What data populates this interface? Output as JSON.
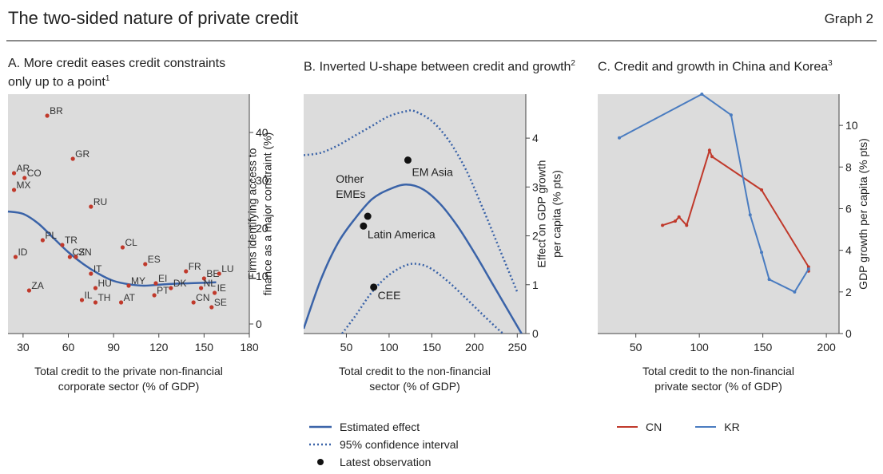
{
  "header": {
    "title": "The two-sided nature of private credit",
    "graph_label": "Graph 2"
  },
  "colors": {
    "panel_bg": "#dcdcdc",
    "estimate": "#3a63a8",
    "ci": "#3a63a8",
    "point_a": "#c0392b",
    "cn": "#c0392b",
    "kr": "#4a7cc0",
    "obs": "#111111"
  },
  "chart_data": [
    {
      "type": "scatter",
      "title": "A. More credit eases credit constraints only up to a point",
      "title_sup": "1",
      "xlabel_lines": [
        "Total credit to the private non-financial",
        "corporate sector (% of GDP)"
      ],
      "ylabel_lines": [
        "Firms identifying access to",
        "finance as a major constraint (%)"
      ],
      "y_axis_side": "right",
      "xlim": [
        20,
        180
      ],
      "ylim": [
        -2,
        48
      ],
      "x_ticks": [
        30,
        60,
        90,
        120,
        150,
        180
      ],
      "y_ticks": [
        0,
        10,
        20,
        30,
        40
      ],
      "points": [
        {
          "label": "BR",
          "x": 46,
          "y": 43.5
        },
        {
          "label": "GR",
          "x": 63,
          "y": 34.5
        },
        {
          "label": "AR",
          "x": 24,
          "y": 31.5
        },
        {
          "label": "CO",
          "x": 31,
          "y": 30.5
        },
        {
          "label": "MX",
          "x": 24,
          "y": 28
        },
        {
          "label": "RU",
          "x": 75,
          "y": 24.5
        },
        {
          "label": "PL",
          "x": 43,
          "y": 17.5
        },
        {
          "label": "TR",
          "x": 56,
          "y": 16.5
        },
        {
          "label": "ID",
          "x": 25,
          "y": 14
        },
        {
          "label": "CZ",
          "x": 61,
          "y": 14
        },
        {
          "label": "SN",
          "x": 65,
          "y": 14
        },
        {
          "label": "CL",
          "x": 96,
          "y": 16
        },
        {
          "label": "ES",
          "x": 111,
          "y": 12.5
        },
        {
          "label": "FR",
          "x": 138,
          "y": 11
        },
        {
          "label": "BE",
          "x": 150,
          "y": 9.5
        },
        {
          "label": "LU",
          "x": 160,
          "y": 10.5
        },
        {
          "label": "IT",
          "x": 75,
          "y": 10.5
        },
        {
          "label": "HU",
          "x": 78,
          "y": 7.5
        },
        {
          "label": "MY",
          "x": 100,
          "y": 8
        },
        {
          "label": "EI",
          "x": 118,
          "y": 8.5
        },
        {
          "label": "DK",
          "x": 128,
          "y": 7.5
        },
        {
          "label": "ZA",
          "x": 34,
          "y": 7
        },
        {
          "label": "IL",
          "x": 69,
          "y": 5
        },
        {
          "label": "TH",
          "x": 78,
          "y": 4.5
        },
        {
          "label": "AT",
          "x": 95,
          "y": 4.5
        },
        {
          "label": "PT",
          "x": 117,
          "y": 6
        },
        {
          "label": "NL",
          "x": 148,
          "y": 7.5
        },
        {
          "label": "IE",
          "x": 157,
          "y": 6.5
        },
        {
          "label": "CN",
          "x": 143,
          "y": 4.5
        },
        {
          "label": "SE",
          "x": 155,
          "y": 3.5
        }
      ],
      "fit_curve": [
        [
          20,
          23.5
        ],
        [
          30,
          23
        ],
        [
          40,
          21
        ],
        [
          50,
          18
        ],
        [
          60,
          15
        ],
        [
          70,
          12.5
        ],
        [
          80,
          10.5
        ],
        [
          90,
          9
        ],
        [
          100,
          8.3
        ],
        [
          110,
          8
        ],
        [
          120,
          8.2
        ],
        [
          130,
          8.4
        ],
        [
          140,
          8.5
        ],
        [
          150,
          8.6
        ],
        [
          158,
          8.7
        ]
      ]
    },
    {
      "type": "line",
      "title": "B. Inverted U-shape between credit and growth",
      "title_sup": "2",
      "xlabel_lines": [
        "Total credit to the non-financial",
        "sector (% of GDP)"
      ],
      "ylabel_lines": [
        "Effect on GDP growth",
        "per capita (% pts)"
      ],
      "y_axis_side": "right",
      "xlim": [
        0,
        260
      ],
      "ylim": [
        0,
        4.9
      ],
      "x_ticks": [
        50,
        100,
        150,
        200,
        250
      ],
      "y_ticks": [
        0,
        1,
        2,
        3,
        4
      ],
      "series": [
        {
          "name": "Estimated effect",
          "style": "solid",
          "points": [
            [
              0,
              0.1
            ],
            [
              20,
              1.1
            ],
            [
              40,
              1.85
            ],
            [
              60,
              2.35
            ],
            [
              80,
              2.75
            ],
            [
              100,
              2.95
            ],
            [
              120,
              3.05
            ],
            [
              140,
              2.95
            ],
            [
              160,
              2.65
            ],
            [
              180,
              2.2
            ],
            [
              200,
              1.65
            ],
            [
              220,
              1.05
            ],
            [
              240,
              0.45
            ],
            [
              255,
              0
            ]
          ]
        },
        {
          "name": "95% confidence interval",
          "style": "dotted",
          "points": [
            [
              0,
              3.65
            ],
            [
              20,
              3.7
            ],
            [
              40,
              3.85
            ],
            [
              60,
              4.05
            ],
            [
              80,
              4.25
            ],
            [
              100,
              4.45
            ],
            [
              120,
              4.55
            ],
            [
              130,
              4.55
            ],
            [
              150,
              4.35
            ],
            [
              170,
              3.95
            ],
            [
              190,
              3.35
            ],
            [
              210,
              2.55
            ],
            [
              230,
              1.7
            ],
            [
              250,
              0.85
            ]
          ]
        },
        {
          "name": "95% confidence interval",
          "style": "dotted",
          "points": [
            [
              45,
              0
            ],
            [
              60,
              0.35
            ],
            [
              80,
              0.85
            ],
            [
              100,
              1.2
            ],
            [
              120,
              1.4
            ],
            [
              135,
              1.42
            ],
            [
              150,
              1.32
            ],
            [
              170,
              1.05
            ],
            [
              190,
              0.72
            ],
            [
              210,
              0.38
            ],
            [
              230,
              0.05
            ],
            [
              235,
              0
            ]
          ]
        }
      ],
      "observations": [
        {
          "label": "EM Asia",
          "x": 122,
          "y": 3.55
        },
        {
          "label": "Other EMEs",
          "x": 75,
          "y": 2.4
        },
        {
          "label": "Latin America",
          "x": 70,
          "y": 2.2
        },
        {
          "label": "CEE",
          "x": 82,
          "y": 0.95
        }
      ],
      "legend": [
        {
          "label": "Estimated effect",
          "kind": "solid"
        },
        {
          "label": "95% confidence interval",
          "kind": "dotted"
        },
        {
          "label": "Latest observation",
          "kind": "dot"
        }
      ]
    },
    {
      "type": "line",
      "title": "C. Credit and growth in China and Korea",
      "title_sup": "3",
      "xlabel_lines": [
        "Total credit to the non-financial",
        "private sector (% of GDP)"
      ],
      "ylabel_lines": [
        "GDP growth per capita (% pts)"
      ],
      "y_axis_side": "right",
      "xlim": [
        20,
        210
      ],
      "ylim": [
        0,
        11.5
      ],
      "x_ticks": [
        50,
        100,
        150,
        200
      ],
      "y_ticks": [
        0,
        2,
        4,
        6,
        8,
        10
      ],
      "series": [
        {
          "name": "CN",
          "points": [
            [
              71,
              5.2
            ],
            [
              81,
              5.4
            ],
            [
              84,
              5.6
            ],
            [
              90,
              5.2
            ],
            [
              108,
              8.8
            ],
            [
              110,
              8.5
            ],
            [
              149,
              6.9
            ],
            [
              186,
              3.2
            ],
            [
              186,
              3.0
            ]
          ]
        },
        {
          "name": "KR",
          "points": [
            [
              37,
              9.4
            ],
            [
              102,
              11.5
            ],
            [
              125,
              10.5
            ],
            [
              140,
              5.7
            ],
            [
              149,
              3.9
            ],
            [
              155,
              2.6
            ],
            [
              175,
              2.0
            ],
            [
              186,
              3.1
            ]
          ]
        }
      ],
      "legend": [
        {
          "label": "CN",
          "color_key": "cn"
        },
        {
          "label": "KR",
          "color_key": "kr"
        }
      ]
    }
  ]
}
